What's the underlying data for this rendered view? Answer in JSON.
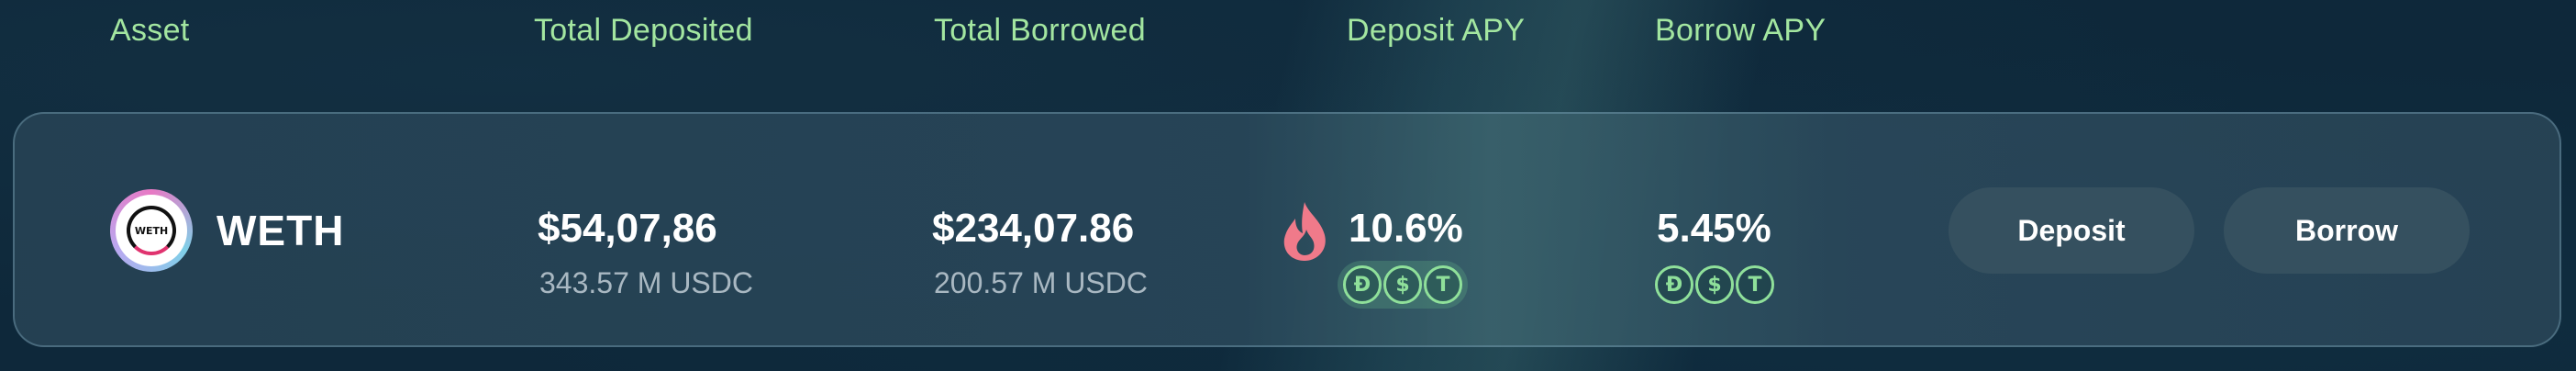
{
  "header": {
    "asset": "Asset",
    "total_deposited": "Total Deposited",
    "total_borrowed": "Total Borrowed",
    "deposit_apy": "Deposit APY",
    "borrow_apy": "Borrow APY"
  },
  "row": {
    "asset_name": "WETH",
    "logo_text": "WETH",
    "total_deposited_value": "$54,07,86",
    "total_deposited_sub": "343.57 M USDC",
    "total_borrowed_value": "$234,07.86",
    "total_borrowed_sub": "200.57 M USDC",
    "deposit_apy": "10.6%",
    "borrow_apy": "5.45%",
    "deposit_coins": [
      {
        "icon": "dai-coin-icon",
        "glyph": "Đ"
      },
      {
        "icon": "usdc-coin-icon",
        "glyph": "$"
      },
      {
        "icon": "usdt-coin-icon",
        "glyph": "T"
      }
    ],
    "borrow_coins": [
      {
        "icon": "dai-coin-icon",
        "glyph": "Đ"
      },
      {
        "icon": "usdc-coin-icon",
        "glyph": "$"
      },
      {
        "icon": "usdt-coin-icon",
        "glyph": "T"
      }
    ],
    "deposit_button": "Deposit",
    "borrow_button": "Borrow"
  },
  "colors": {
    "header_text": "#a3e6a0",
    "coin_green": "#8fe09a",
    "flame": "#f07a8a",
    "button_bg": "#35505f"
  }
}
